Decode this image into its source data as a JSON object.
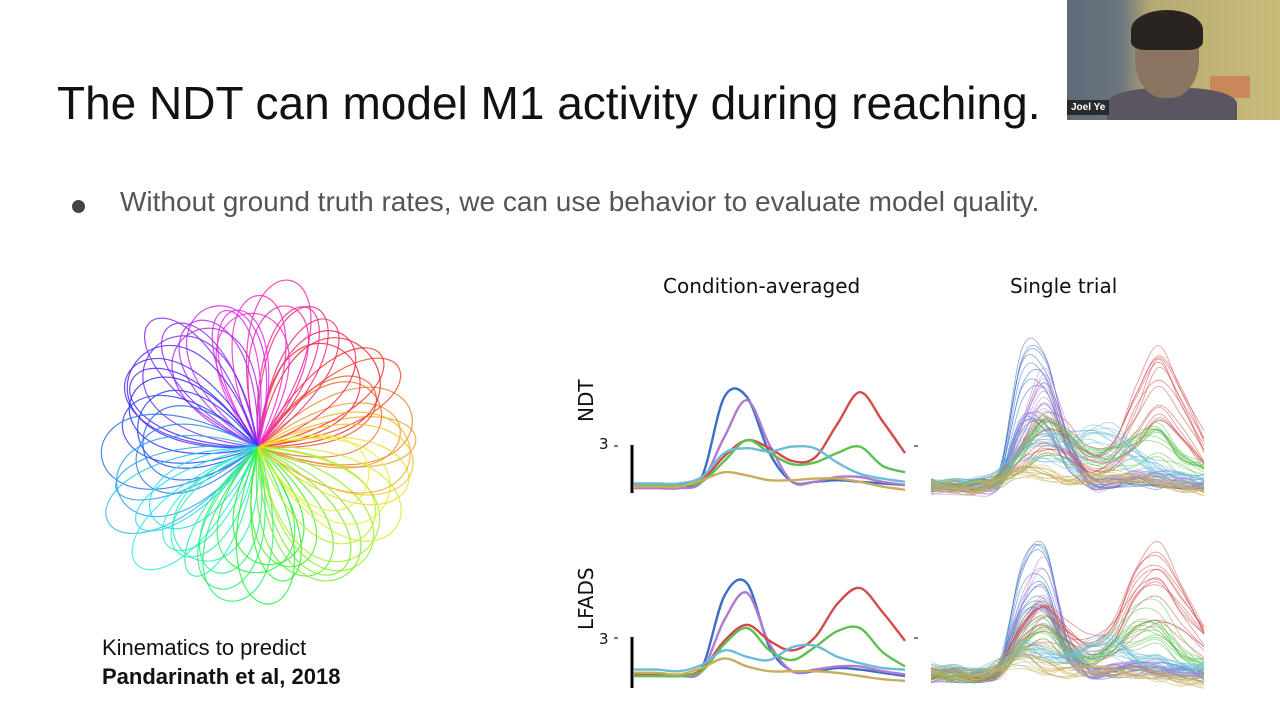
{
  "slide": {
    "title": "The NDT can model M1 activity during reaching.",
    "bullet": "Without ground truth rates, we can use behavior to evaluate model quality.",
    "caption_line1": "Kinematics to predict",
    "caption_line2": "Pandarinath et al, 2018"
  },
  "video": {
    "participant_name": "Joel Ye"
  },
  "chart_data": {
    "type": "line",
    "columns": [
      "Condition-averaged",
      "Single trial"
    ],
    "rows": [
      "NDT",
      "LFADS"
    ],
    "scale_bar_label": "3",
    "colors": {
      "blue": "#3a6fc4",
      "purple": "#b07ad0",
      "red": "#d24a4a",
      "green": "#5cbf4f",
      "cyan": "#6bbcd8",
      "gold": "#c9ad5a"
    },
    "condition_averaged": {
      "NDT": {
        "blue": [
          0,
          0,
          0,
          0.5,
          5.5,
          5.5,
          2.0,
          0.2,
          0.2,
          0.3,
          0.2,
          0.1,
          0
        ],
        "purple": [
          -0.2,
          -0.2,
          -0.2,
          0.2,
          3,
          5.3,
          2.5,
          0.2,
          0.2,
          0.5,
          0.5,
          0.2,
          0
        ],
        "red": [
          0,
          0,
          0,
          0.3,
          1.8,
          2.8,
          2.3,
          1.5,
          1.7,
          3.8,
          5.8,
          4,
          2
        ],
        "green": [
          0,
          0,
          0,
          0.2,
          1.5,
          2.8,
          2.0,
          1.3,
          1.4,
          2,
          2.4,
          1.2,
          0.8
        ],
        "cyan": [
          0.1,
          0.1,
          0.1,
          0.5,
          2.0,
          2.3,
          2.1,
          2.4,
          2.3,
          1.4,
          0.7,
          0.4,
          0.2
        ],
        "gold": [
          -0.1,
          -0.1,
          -0.1,
          0.3,
          0.8,
          0.6,
          0.3,
          0.3,
          0.4,
          0.4,
          0.2,
          -0.1,
          -0.3
        ]
      },
      "LFADS": {
        "blue": [
          0.1,
          0.1,
          0,
          0.5,
          5,
          5.8,
          1.8,
          0.3,
          0.3,
          0.5,
          0.4,
          0.2,
          0
        ],
        "purple": [
          0,
          0,
          0,
          0.3,
          3.5,
          5.2,
          2.0,
          0.3,
          0.4,
          0.6,
          0.6,
          0.3,
          0.1
        ],
        "red": [
          0.1,
          0.1,
          0,
          0.4,
          2.2,
          3.2,
          2.2,
          1.6,
          2.4,
          4.5,
          5.5,
          4,
          2.2
        ],
        "green": [
          0,
          0,
          0,
          0.3,
          2.0,
          3.0,
          1.6,
          1.0,
          1.8,
          2.8,
          3.0,
          1.5,
          0.6
        ],
        "cyan": [
          0.4,
          0.4,
          0.3,
          0.7,
          1.6,
          1.2,
          1.0,
          1.8,
          1.9,
          1.2,
          0.8,
          0.5,
          0.4
        ],
        "gold": [
          0.2,
          0.2,
          0.1,
          0.5,
          1.1,
          0.6,
          0.3,
          0.3,
          0.3,
          0.2,
          0,
          -0.2,
          -0.3
        ]
      }
    }
  }
}
